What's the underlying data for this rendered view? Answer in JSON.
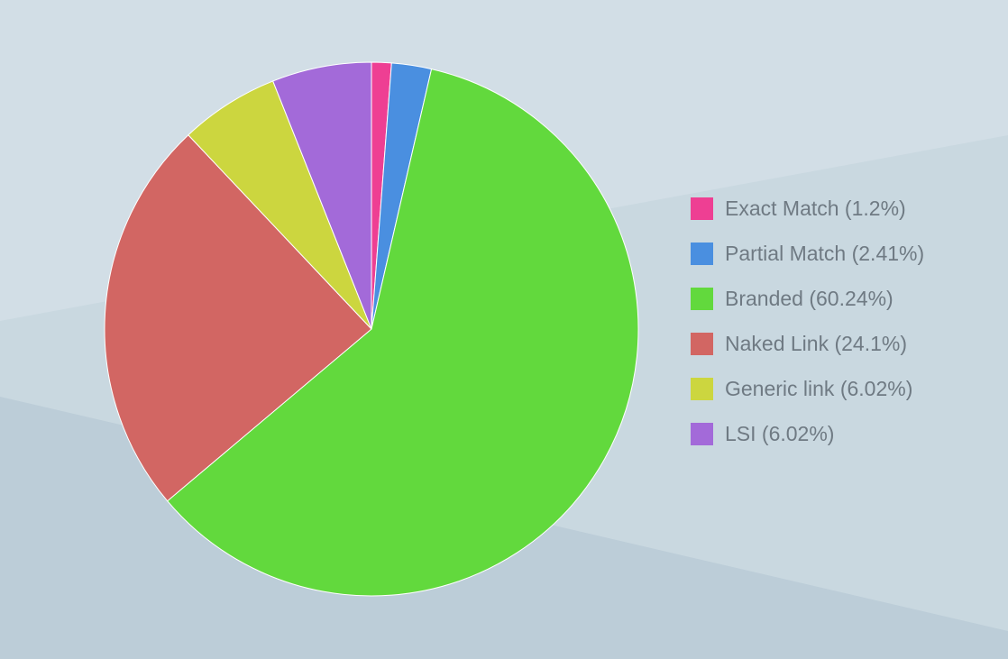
{
  "chart_data": {
    "type": "pie",
    "start": "top",
    "direction": "clockwise",
    "legend_position": "right",
    "slices": [
      {
        "label": "Exact Match (1.2%)",
        "value": 1.2,
        "color": "#ee3f93"
      },
      {
        "label": "Partial Match (2.41%)",
        "value": 2.41,
        "color": "#4a8fe0"
      },
      {
        "label": "Branded (60.24%)",
        "value": 60.24,
        "color": "#62d93d"
      },
      {
        "label": "Naked Link (24.1%)",
        "value": 24.1,
        "color": "#d26663"
      },
      {
        "label": "Generic link (6.02%)",
        "value": 6.02,
        "color": "#ccd63f"
      },
      {
        "label": "LSI (6.02%)",
        "value": 6.02,
        "color": "#a36ad9"
      }
    ]
  }
}
